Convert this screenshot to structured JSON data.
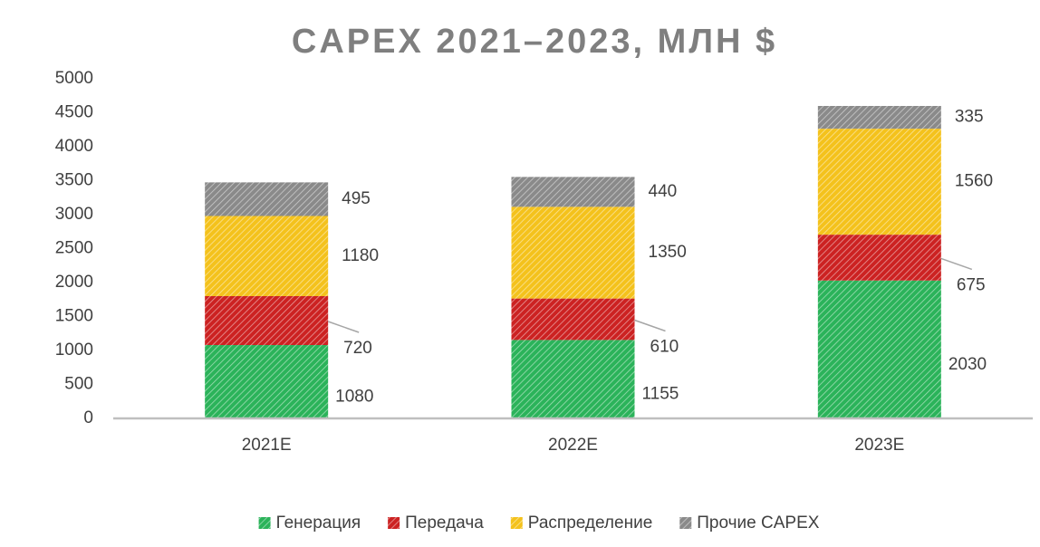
{
  "chart_data": {
    "type": "stacked-bar",
    "title": "CAPEX 2021–2023, МЛН $",
    "categories": [
      "2021E",
      "2022E",
      "2023E"
    ],
    "series": [
      {
        "name": "Генерация",
        "color": "#2bb35a",
        "values": [
          1080,
          1155,
          2030
        ]
      },
      {
        "name": "Передача",
        "color": "#cc2222",
        "values": [
          720,
          610,
          675
        ]
      },
      {
        "name": "Распределение",
        "color": "#f4c21c",
        "values": [
          1180,
          1350,
          1560
        ]
      },
      {
        "name": "Прочие CAPEX",
        "color": "#8a8a8a",
        "values": [
          495,
          440,
          335
        ]
      }
    ],
    "ylim": [
      0,
      5000
    ],
    "yticks": [
      0,
      500,
      1000,
      1500,
      2000,
      2500,
      3000,
      3500,
      4000,
      4500,
      5000
    ],
    "grid": false,
    "legend": "bottom"
  }
}
